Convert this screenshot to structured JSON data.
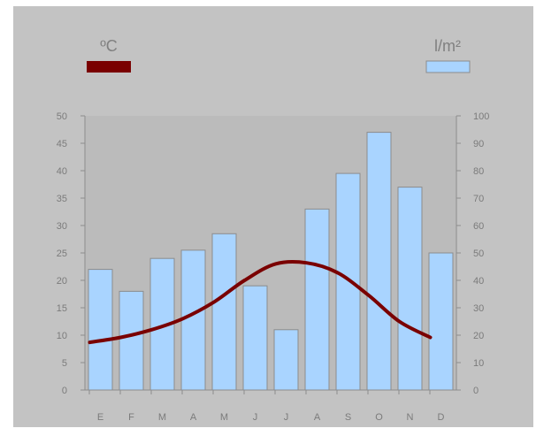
{
  "chart_data": {
    "type": "bar",
    "categories": [
      "E",
      "F",
      "M",
      "A",
      "M",
      "J",
      "J",
      "A",
      "S",
      "O",
      "N",
      "D"
    ],
    "series": [
      {
        "name": "l/m²",
        "kind": "bar",
        "axis": "right",
        "color": "#a9d4ff",
        "values": [
          44,
          36,
          48,
          51,
          57,
          38,
          22,
          66,
          79,
          94,
          74,
          50
        ]
      },
      {
        "name": "ºC",
        "kind": "line",
        "axis": "left",
        "color": "#7a0000",
        "values": [
          8.7,
          9.6,
          11.0,
          13.0,
          16.0,
          20.0,
          23.0,
          23.2,
          21.4,
          17.3,
          12.5,
          9.6
        ]
      }
    ],
    "left_axis": {
      "unit": "ºC",
      "ylim": [
        0,
        50
      ],
      "ticks": [
        0,
        5,
        10,
        15,
        20,
        25,
        30,
        35,
        40,
        45,
        50
      ]
    },
    "right_axis": {
      "unit": "l/m²",
      "ylim": [
        0,
        100
      ],
      "ticks": [
        0,
        10,
        20,
        30,
        40,
        50,
        60,
        70,
        80,
        90,
        100
      ]
    },
    "legend": {
      "left_label": "ºC",
      "right_label": "l/m²",
      "placement": "top"
    },
    "grid": false
  }
}
